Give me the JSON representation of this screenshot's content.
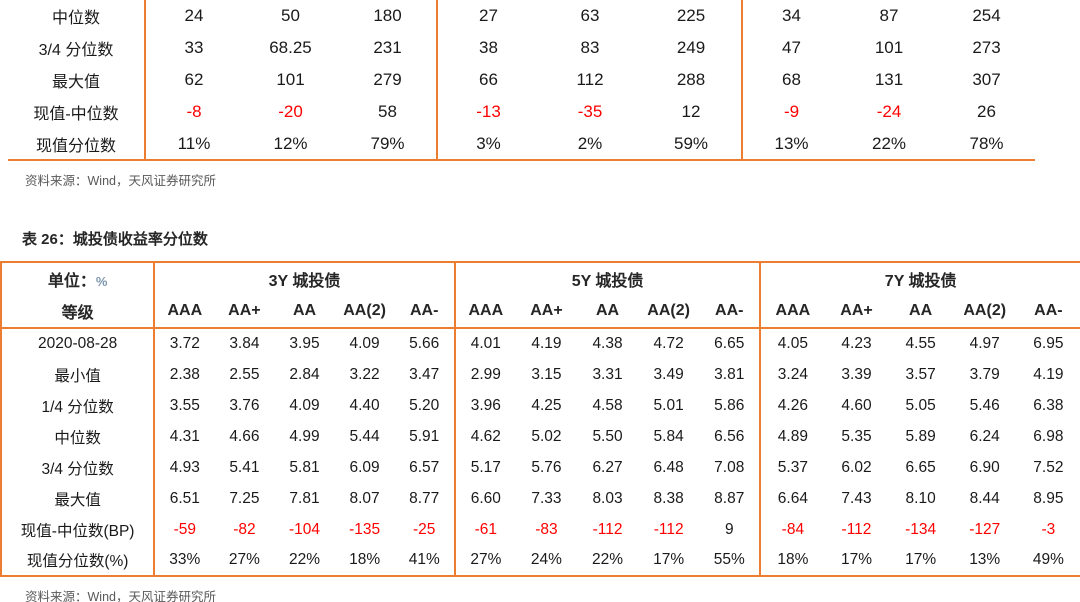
{
  "colors": {
    "accent": "#ED7D31",
    "negative": "#FF0000",
    "text": "#1A1A1A",
    "muted": "#595959",
    "unit_symbol": "#7E96AE"
  },
  "top_table": {
    "rows": [
      {
        "label": "中位数",
        "values": [
          "24",
          "50",
          "180",
          "27",
          "63",
          "225",
          "34",
          "87",
          "254"
        ]
      },
      {
        "label": "3/4 分位数",
        "values": [
          "33",
          "68.25",
          "231",
          "38",
          "83",
          "249",
          "47",
          "101",
          "273"
        ]
      },
      {
        "label": "最大值",
        "values": [
          "62",
          "101",
          "279",
          "66",
          "112",
          "288",
          "68",
          "131",
          "307"
        ]
      },
      {
        "label": "现值-中位数",
        "values": [
          "-8",
          "-20",
          "58",
          "-13",
          "-35",
          "12",
          "-9",
          "-24",
          "26"
        ]
      },
      {
        "label": "现值分位数",
        "values": [
          "11%",
          "12%",
          "79%",
          "3%",
          "2%",
          "59%",
          "13%",
          "22%",
          "78%"
        ]
      }
    ],
    "source": "资料来源：Wind，天风证券研究所"
  },
  "table26": {
    "title": "表 26：城投债收益率分位数",
    "unit_label": "单位：",
    "unit_symbol": "%",
    "level_label": "等级",
    "groups": [
      "3Y 城投债",
      "5Y 城投债",
      "7Y 城投债"
    ],
    "ratings": [
      "AAA",
      "AA+",
      "AA",
      "AA(2)",
      "AA-"
    ],
    "rows": [
      {
        "label": "2020-08-28",
        "values": [
          "3.72",
          "3.84",
          "3.95",
          "4.09",
          "5.66",
          "4.01",
          "4.19",
          "4.38",
          "4.72",
          "6.65",
          "4.05",
          "4.23",
          "4.55",
          "4.97",
          "6.95"
        ]
      },
      {
        "label": "最小值",
        "values": [
          "2.38",
          "2.55",
          "2.84",
          "3.22",
          "3.47",
          "2.99",
          "3.15",
          "3.31",
          "3.49",
          "3.81",
          "3.24",
          "3.39",
          "3.57",
          "3.79",
          "4.19"
        ]
      },
      {
        "label": "1/4 分位数",
        "values": [
          "3.55",
          "3.76",
          "4.09",
          "4.40",
          "5.20",
          "3.96",
          "4.25",
          "4.58",
          "5.01",
          "5.86",
          "4.26",
          "4.60",
          "5.05",
          "5.46",
          "6.38"
        ]
      },
      {
        "label": "中位数",
        "values": [
          "4.31",
          "4.66",
          "4.99",
          "5.44",
          "5.91",
          "4.62",
          "5.02",
          "5.50",
          "5.84",
          "6.56",
          "4.89",
          "5.35",
          "5.89",
          "6.24",
          "6.98"
        ]
      },
      {
        "label": "3/4 分位数",
        "values": [
          "4.93",
          "5.41",
          "5.81",
          "6.09",
          "6.57",
          "5.17",
          "5.76",
          "6.27",
          "6.48",
          "7.08",
          "5.37",
          "6.02",
          "6.65",
          "6.90",
          "7.52"
        ]
      },
      {
        "label": "最大值",
        "values": [
          "6.51",
          "7.25",
          "7.81",
          "8.07",
          "8.77",
          "6.60",
          "7.33",
          "8.03",
          "8.38",
          "8.87",
          "6.64",
          "7.43",
          "8.10",
          "8.44",
          "8.95"
        ]
      },
      {
        "label": "现值-中位数(BP)",
        "values": [
          "-59",
          "-82",
          "-104",
          "-135",
          "-25",
          "-61",
          "-83",
          "-112",
          "-112",
          "9",
          "-84",
          "-112",
          "-134",
          "-127",
          "-3"
        ]
      },
      {
        "label": "现值分位数(%)",
        "values": [
          "33%",
          "27%",
          "22%",
          "18%",
          "41%",
          "27%",
          "24%",
          "22%",
          "17%",
          "55%",
          "18%",
          "17%",
          "17%",
          "13%",
          "49%"
        ]
      }
    ],
    "source": "资料来源：Wind，天风证券研究所"
  }
}
